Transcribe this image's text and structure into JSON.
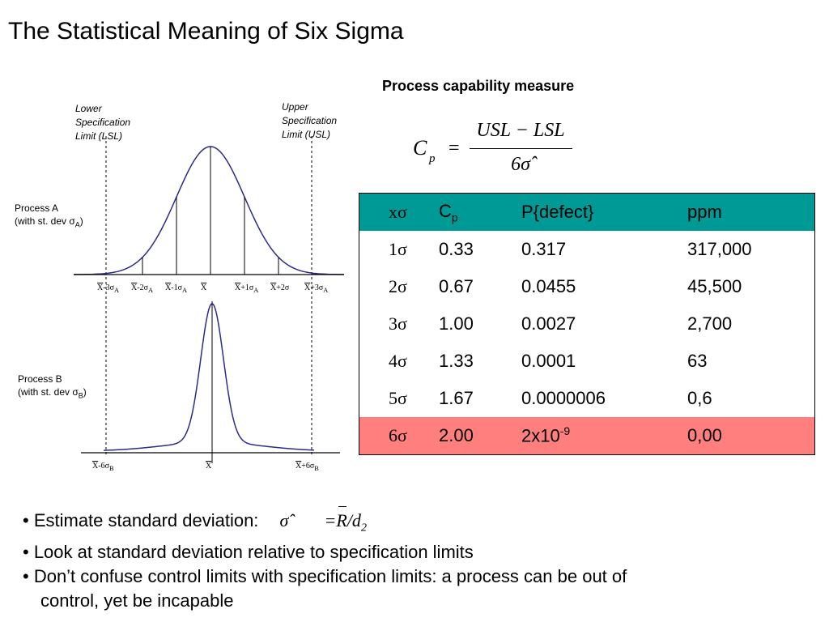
{
  "title": "The Statistical Meaning of Six Sigma",
  "formula": {
    "heading": "Process capability measure",
    "lhs_main": "C",
    "lhs_sub": "p",
    "equals": "=",
    "numerator": "USL − LSL",
    "denominator": "6σ̂"
  },
  "diagram": {
    "lsl_label": [
      "Lower",
      "Specification",
      "Limit (LSL)"
    ],
    "usl_label": [
      "Upper",
      "Specification",
      "Limit (USL)"
    ],
    "process_a": {
      "line1": "Process A",
      "line2": "(with st. dev σ",
      "sub": "A",
      "close": ")"
    },
    "process_b": {
      "line1": "Process B",
      "line2": "(with st. dev σ",
      "sub": "B",
      "close": ")"
    },
    "ticks_a": [
      {
        "main": "X-3σ",
        "sub": "A"
      },
      {
        "main": "X-2σ",
        "sub": "A"
      },
      {
        "main": "X-1σ",
        "sub": "A"
      },
      {
        "main": "X",
        "sub": ""
      },
      {
        "main": "X+1σ",
        "sub": "A"
      },
      {
        "main": "X+2σ",
        "sub": ""
      },
      {
        "main": "X+3σ",
        "sub": "A"
      }
    ],
    "ticks_b": [
      {
        "main": "X-6σ",
        "sub": "B"
      },
      {
        "main": "X",
        "sub": ""
      },
      {
        "main": "X+6σ",
        "sub": "B"
      }
    ],
    "colors": {
      "curve": "#2b2b8c",
      "tail": "#cc0000"
    }
  },
  "table": {
    "header": {
      "c1": "xσ",
      "c2_main": "C",
      "c2_sub": "p",
      "c3": "P{defect}",
      "c4": "ppm"
    },
    "rows": [
      {
        "x": "1σ",
        "cp": "0.33",
        "p_main": "0.317",
        "p_sup": "",
        "ppm": "317,000"
      },
      {
        "x": "2σ",
        "cp": "0.67",
        "p_main": "0.0455",
        "p_sup": "",
        "ppm": "45,500"
      },
      {
        "x": "3σ",
        "cp": "1.00",
        "p_main": "0.0027",
        "p_sup": "",
        "ppm": "2,700"
      },
      {
        "x": "4σ",
        "cp": "1.33",
        "p_main": "0.0001",
        "p_sup": "",
        "ppm": "63"
      },
      {
        "x": "5σ",
        "cp": "1.67",
        "p_main": "0.0000006",
        "p_sup": "",
        "ppm": "0,6"
      },
      {
        "x": "6σ",
        "cp": "2.00",
        "p_main": "2x10",
        "p_sup": "-9",
        "ppm": "0,00"
      }
    ],
    "colors": {
      "header_bg": "#009a96",
      "highlight_bg": "#ff7f7f"
    }
  },
  "bullets": {
    "b1": "• Estimate standard deviation:",
    "b1_formula_lhs": "σ̂",
    "b1_formula_rhs": "=R/d",
    "b1_formula_sub": "2",
    "b2": "• Look at standard deviation relative to specification limits",
    "b3_line1": "• Don’t confuse control limits with specification limits: a process can be out of",
    "b3_line2": "control, yet be incapable"
  }
}
